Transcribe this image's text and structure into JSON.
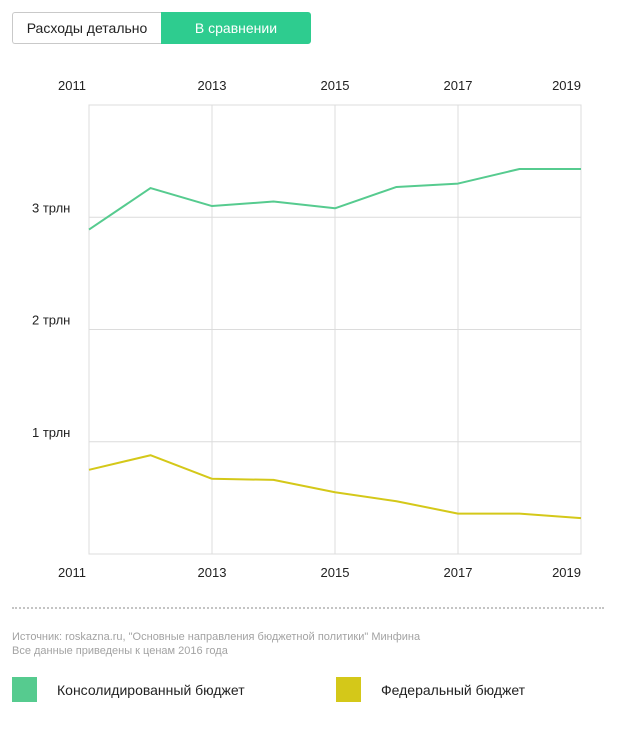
{
  "tabs": {
    "detail_label": "Расходы детально",
    "compare_label": "В сравнении",
    "active": "compare"
  },
  "chart_data": {
    "type": "line",
    "title": "",
    "xlabel": "",
    "ylabel": "",
    "x": [
      2011,
      2012,
      2013,
      2014,
      2015,
      2016,
      2017,
      2018,
      2019
    ],
    "x_tick_labels": [
      "2011",
      "2013",
      "2015",
      "2017",
      "2019"
    ],
    "y_tick_labels": [
      {
        "value": 1,
        "label": "1 трлн"
      },
      {
        "value": 2,
        "label": "2 трлн"
      },
      {
        "value": 3,
        "label": "3 трлн"
      }
    ],
    "xlim": [
      2011,
      2019
    ],
    "ylim": [
      0,
      4
    ],
    "grid": true,
    "series": [
      {
        "name": "Консолидированный бюджет",
        "color": "#56cb8f",
        "values": [
          2.89,
          3.26,
          3.1,
          3.14,
          3.08,
          3.27,
          3.3,
          3.43,
          3.43
        ]
      },
      {
        "name": "Федеральный бюджет",
        "color": "#d4c819",
        "values": [
          0.75,
          0.88,
          0.67,
          0.66,
          0.55,
          0.47,
          0.36,
          0.36,
          0.32
        ]
      }
    ]
  },
  "footer": {
    "source_line": "Источник: roskazna.ru, \"Основные направления бюджетной политики\" Минфина",
    "note_line": "Все данные приведены к ценам 2016 года"
  },
  "legend": [
    {
      "label": "Консолидированный бюджет",
      "color": "#56cb8f"
    },
    {
      "label": "Федеральный бюджет",
      "color": "#d4c819"
    }
  ]
}
